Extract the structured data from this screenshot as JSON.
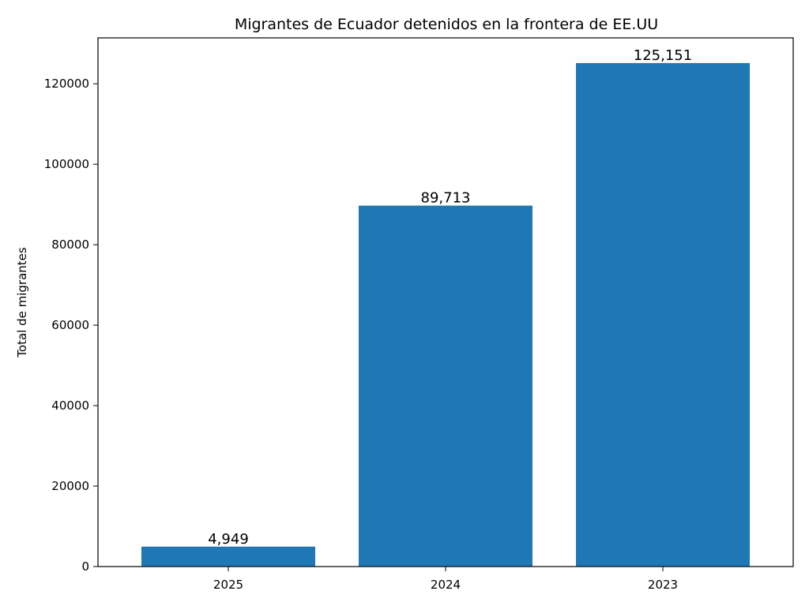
{
  "chart_data": {
    "type": "bar",
    "title": "Migrantes de Ecuador detenidos en la frontera de EE.UU",
    "xlabel": "",
    "ylabel": "Total de migrantes",
    "categories": [
      "2025",
      "2024",
      "2023"
    ],
    "values": [
      4949,
      89713,
      125151
    ],
    "data_labels": [
      "4,949",
      "89,713",
      "125,151"
    ],
    "ylim": [
      0,
      131408
    ],
    "yticks": [
      0,
      20000,
      40000,
      60000,
      80000,
      100000,
      120000
    ],
    "ytick_labels": [
      "0",
      "20000",
      "40000",
      "60000",
      "80000",
      "100000",
      "120000"
    ],
    "bar_color": "#1f77b4",
    "grid": false,
    "legend": "none"
  }
}
